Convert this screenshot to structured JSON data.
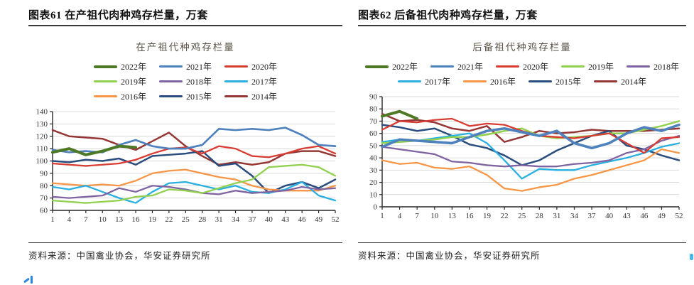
{
  "figures": [
    {
      "header": "图表61  在产祖代肉种鸡存栏量，万套",
      "source": "资料来源：中国禽业协会，华安证券研究所"
    },
    {
      "header": "图表62  后备祖代肉种鸡存栏量，万套",
      "source": "资料来源：中国禽业协会，华安证券研究所"
    }
  ],
  "colors": {
    "grid": "#d9d9d9",
    "axis": "#262626",
    "tick_text": "#333333"
  },
  "chart_data": [
    {
      "type": "line",
      "title": "在产祖代种鸡存栏量",
      "xlabel": "",
      "ylabel": "",
      "x": [
        1,
        4,
        7,
        10,
        13,
        16,
        19,
        22,
        25,
        28,
        31,
        34,
        37,
        40,
        43,
        46,
        49,
        52
      ],
      "x_ticks": [
        1,
        4,
        7,
        10,
        13,
        16,
        19,
        22,
        25,
        28,
        31,
        34,
        37,
        40,
        43,
        46,
        49,
        52
      ],
      "ylim": [
        60,
        140
      ],
      "ytick_step": 10,
      "grid": true,
      "legend_position": "top",
      "legend_rows": [
        3,
        3,
        3
      ],
      "series": [
        {
          "name": "2022年",
          "color": "#4e7a27",
          "lw": 4,
          "values": [
            107,
            110,
            105,
            108,
            112,
            111
          ]
        },
        {
          "name": "2021年",
          "color": "#4f81bd",
          "lw": 2.7,
          "values": [
            109,
            107,
            108,
            107,
            113,
            117,
            112,
            110,
            110,
            113,
            126,
            125,
            126,
            125,
            127,
            121,
            113,
            112
          ]
        },
        {
          "name": "2020年",
          "color": "#d93c32",
          "lw": 2.3,
          "values": [
            98,
            97,
            96,
            97,
            98,
            101,
            106,
            110,
            111,
            106,
            112,
            110,
            104,
            103,
            106,
            110,
            112,
            106
          ]
        },
        {
          "name": "2019年",
          "color": "#92d050",
          "lw": 2.3,
          "values": [
            68,
            67,
            66,
            67,
            68,
            71,
            72,
            77,
            76,
            74,
            78,
            82,
            85,
            95,
            96,
            97,
            95,
            88
          ]
        },
        {
          "name": "2018年",
          "color": "#8064a2",
          "lw": 2.3,
          "values": [
            71,
            70,
            71,
            72,
            78,
            75,
            80,
            79,
            77,
            74,
            73,
            76,
            74,
            75,
            76,
            79,
            77,
            78
          ]
        },
        {
          "name": "2017年",
          "color": "#29b0e0",
          "lw": 2.3,
          "values": [
            79,
            77,
            80,
            75,
            70,
            66,
            75,
            82,
            83,
            80,
            77,
            80,
            75,
            74,
            77,
            83,
            72,
            68
          ]
        },
        {
          "name": "2016年",
          "color": "#f79646",
          "lw": 2.3,
          "values": [
            82,
            81,
            80,
            81,
            80,
            84,
            90,
            92,
            93,
            90,
            87,
            85,
            80,
            77,
            76,
            76,
            76,
            80
          ]
        },
        {
          "name": "2015年",
          "color": "#2a4d7e",
          "lw": 2.5,
          "values": [
            100,
            99,
            101,
            100,
            102,
            97,
            104,
            105,
            106,
            108,
            96,
            98,
            88,
            74,
            80,
            83,
            78,
            85
          ]
        },
        {
          "name": "2014年",
          "color": "#953735",
          "lw": 2.5,
          "values": [
            125,
            120,
            119,
            118,
            113,
            109,
            116,
            123,
            112,
            104,
            97,
            99,
            97,
            99,
            106,
            108,
            108,
            104
          ]
        }
      ]
    },
    {
      "type": "line",
      "title": "后备祖代种鸡存栏量",
      "xlabel": "",
      "ylabel": "",
      "x": [
        1,
        4,
        7,
        10,
        13,
        16,
        19,
        22,
        25,
        28,
        31,
        34,
        37,
        40,
        43,
        46,
        49,
        52
      ],
      "x_ticks": [
        1,
        4,
        7,
        10,
        13,
        16,
        19,
        22,
        25,
        28,
        31,
        34,
        37,
        40,
        43,
        46,
        49,
        52
      ],
      "ylim": [
        0,
        90
      ],
      "ytick_step": 10,
      "grid": true,
      "legend_position": "top",
      "legend_rows": [
        5,
        4
      ],
      "series": [
        {
          "name": "2022年",
          "color": "#4e7a27",
          "lw": 4,
          "values": [
            74,
            78,
            72
          ]
        },
        {
          "name": "2021年",
          "color": "#4f81bd",
          "lw": 3.6,
          "values": [
            49,
            55,
            54,
            53,
            52,
            57,
            62,
            64,
            61,
            58,
            62,
            52,
            48,
            52,
            60,
            65,
            62,
            67
          ]
        },
        {
          "name": "2020年",
          "color": "#d93c32",
          "lw": 2.3,
          "values": [
            63,
            70,
            69,
            71,
            72,
            66,
            68,
            67,
            62,
            58,
            57,
            56,
            58,
            60,
            52,
            44,
            56,
            57
          ]
        },
        {
          "name": "2019年",
          "color": "#92d050",
          "lw": 2.5,
          "values": [
            52,
            53,
            54,
            55,
            57,
            57,
            59,
            62,
            64,
            58,
            56,
            57,
            58,
            60,
            60,
            63,
            66,
            70
          ]
        },
        {
          "name": "2018年",
          "color": "#8064a2",
          "lw": 2.3,
          "values": [
            49,
            47,
            45,
            43,
            37,
            36,
            34,
            33,
            34,
            33,
            33,
            35,
            36,
            38,
            44,
            47,
            54,
            58
          ]
        },
        {
          "name": "2017年",
          "color": "#29b0e0",
          "lw": 2.3,
          "values": [
            53,
            55,
            54,
            56,
            58,
            60,
            52,
            38,
            23,
            31,
            30,
            30,
            34,
            37,
            40,
            44,
            49,
            52
          ]
        },
        {
          "name": "2016年",
          "color": "#f79646",
          "lw": 2.3,
          "values": [
            38,
            35,
            36,
            32,
            31,
            33,
            26,
            15,
            13,
            16,
            18,
            23,
            26,
            30,
            34,
            38,
            47,
            44
          ]
        },
        {
          "name": "2015年",
          "color": "#2a4d7e",
          "lw": 2.5,
          "values": [
            67,
            65,
            62,
            64,
            58,
            51,
            48,
            42,
            34,
            38,
            46,
            52,
            58,
            62,
            50,
            47,
            42,
            38
          ]
        },
        {
          "name": "2014年",
          "color": "#953735",
          "lw": 2.5,
          "values": [
            76,
            70,
            71,
            69,
            64,
            62,
            66,
            53,
            57,
            62,
            60,
            61,
            63,
            62,
            62,
            62,
            63,
            64
          ]
        }
      ]
    }
  ]
}
